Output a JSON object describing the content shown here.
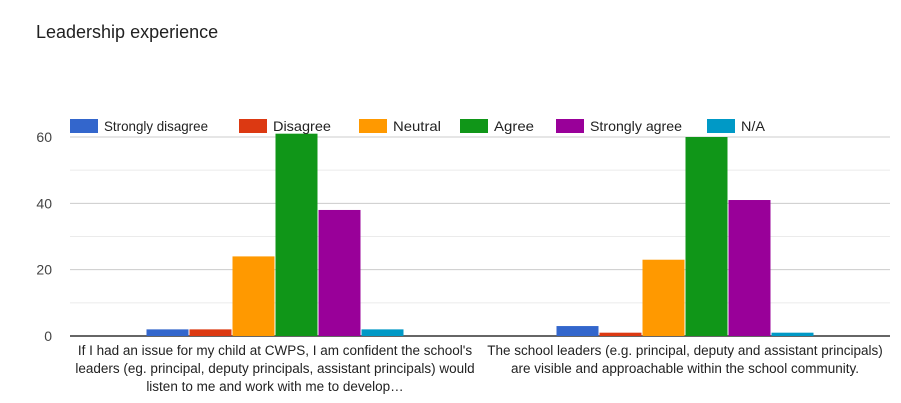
{
  "chart_data": {
    "type": "bar",
    "title": "Leadership experience",
    "categories": [
      "If I had an issue for my child at CWPS, I am confident the school's leaders (eg. principal, deputy principals, assistant principals) would listen to me and work with me to develop…",
      "The school leaders (e.g. principal, deputy and assistant principals) are visible and approachable within the school community."
    ],
    "series": [
      {
        "name": "Strongly disagree",
        "color": "#3366cc",
        "values": [
          2,
          3
        ]
      },
      {
        "name": "Disagree",
        "color": "#dc3912",
        "values": [
          2,
          1
        ]
      },
      {
        "name": "Neutral",
        "color": "#ff9900",
        "values": [
          24,
          23
        ]
      },
      {
        "name": "Agree",
        "color": "#109618",
        "values": [
          61,
          60
        ]
      },
      {
        "name": "Strongly agree",
        "color": "#990099",
        "values": [
          38,
          41
        ]
      },
      {
        "name": "N/A",
        "color": "#0099c6",
        "values": [
          2,
          1
        ]
      }
    ],
    "ylim": [
      0,
      60
    ],
    "yticks": [
      0,
      20,
      40,
      60
    ],
    "grid": true,
    "legend_position": "top",
    "xlabel": "",
    "ylabel": ""
  }
}
